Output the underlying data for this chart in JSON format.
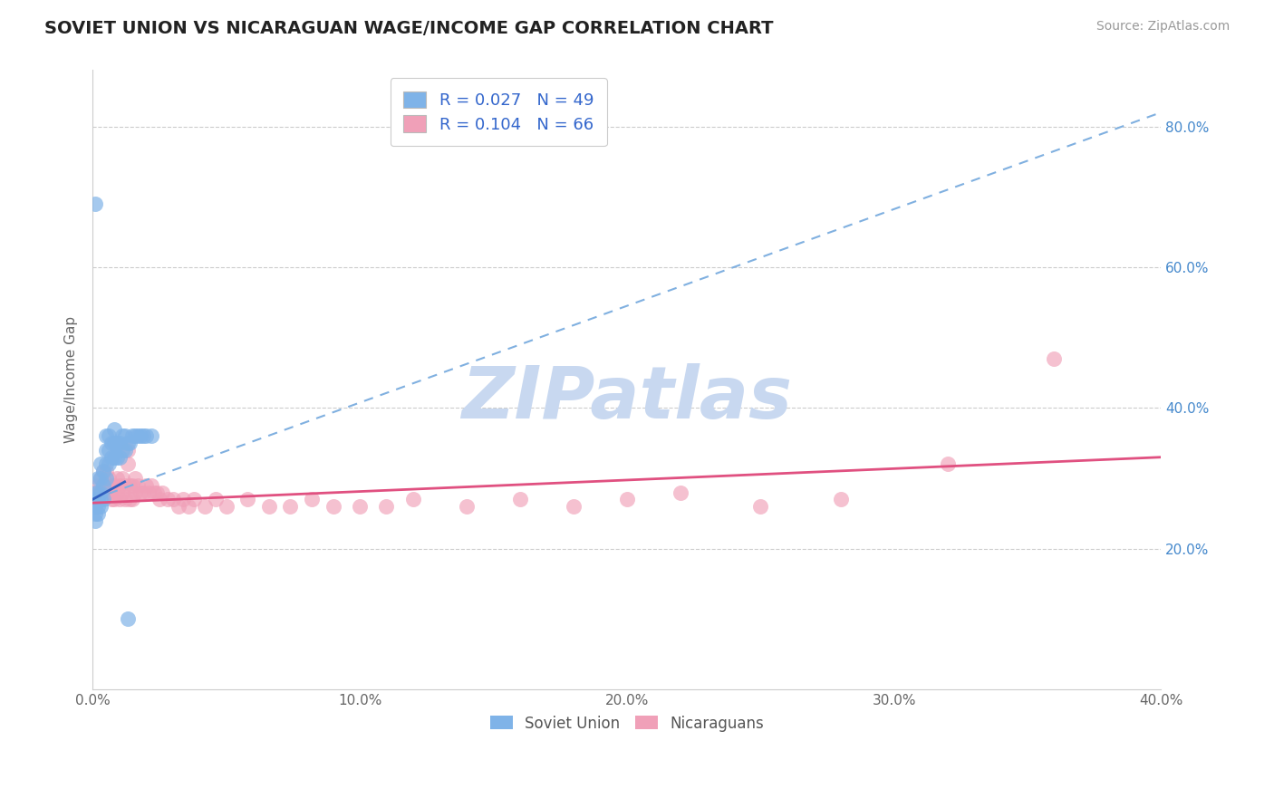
{
  "title": "SOVIET UNION VS NICARAGUAN WAGE/INCOME GAP CORRELATION CHART",
  "source": "Source: ZipAtlas.com",
  "ylabel": "Wage/Income Gap",
  "xlim": [
    0.0,
    0.4
  ],
  "ylim": [
    0.0,
    0.88
  ],
  "x_ticks": [
    0.0,
    0.1,
    0.2,
    0.3,
    0.4
  ],
  "x_tick_labels": [
    "0.0%",
    "10.0%",
    "20.0%",
    "30.0%",
    "40.0%"
  ],
  "y_ticks_right": [
    0.2,
    0.4,
    0.6,
    0.8
  ],
  "y_tick_labels_right": [
    "20.0%",
    "40.0%",
    "60.0%",
    "80.0%"
  ],
  "soviet_R": 0.027,
  "soviet_N": 49,
  "nicaraguan_R": 0.104,
  "nicaraguan_N": 66,
  "soviet_color": "#7fb3e8",
  "nicaraguan_color": "#f0a0b8",
  "soviet_line_color": "#3060c0",
  "soviet_line_dash_color": "#80b0e0",
  "nicaraguan_line_color": "#e05080",
  "background_color": "#ffffff",
  "grid_color": "#cccccc",
  "watermark": "ZIPatlas",
  "watermark_color": "#c8d8f0",
  "soviet_x": [
    0.001,
    0.001,
    0.001,
    0.001,
    0.001,
    0.002,
    0.002,
    0.002,
    0.002,
    0.002,
    0.003,
    0.003,
    0.003,
    0.003,
    0.003,
    0.004,
    0.004,
    0.004,
    0.005,
    0.005,
    0.005,
    0.005,
    0.006,
    0.006,
    0.006,
    0.007,
    0.007,
    0.008,
    0.008,
    0.008,
    0.009,
    0.009,
    0.01,
    0.01,
    0.011,
    0.011,
    0.012,
    0.012,
    0.013,
    0.014,
    0.015,
    0.016,
    0.017,
    0.018,
    0.019,
    0.02,
    0.022,
    0.001,
    0.013
  ],
  "soviet_y": [
    0.24,
    0.25,
    0.26,
    0.27,
    0.28,
    0.25,
    0.26,
    0.27,
    0.28,
    0.3,
    0.26,
    0.27,
    0.28,
    0.3,
    0.32,
    0.27,
    0.29,
    0.31,
    0.3,
    0.32,
    0.34,
    0.36,
    0.32,
    0.34,
    0.36,
    0.33,
    0.35,
    0.33,
    0.35,
    0.37,
    0.33,
    0.35,
    0.33,
    0.35,
    0.34,
    0.36,
    0.34,
    0.36,
    0.35,
    0.35,
    0.36,
    0.36,
    0.36,
    0.36,
    0.36,
    0.36,
    0.36,
    0.69,
    0.1
  ],
  "nicaraguan_x": [
    0.001,
    0.002,
    0.003,
    0.003,
    0.004,
    0.004,
    0.005,
    0.005,
    0.006,
    0.006,
    0.007,
    0.007,
    0.008,
    0.008,
    0.009,
    0.009,
    0.01,
    0.01,
    0.011,
    0.011,
    0.012,
    0.012,
    0.013,
    0.013,
    0.014,
    0.014,
    0.015,
    0.015,
    0.016,
    0.016,
    0.017,
    0.018,
    0.019,
    0.02,
    0.021,
    0.022,
    0.023,
    0.024,
    0.025,
    0.026,
    0.028,
    0.03,
    0.032,
    0.034,
    0.036,
    0.038,
    0.042,
    0.046,
    0.05,
    0.058,
    0.066,
    0.074,
    0.082,
    0.09,
    0.1,
    0.11,
    0.12,
    0.14,
    0.16,
    0.18,
    0.2,
    0.22,
    0.25,
    0.28,
    0.32,
    0.36
  ],
  "nicaraguan_y": [
    0.28,
    0.29,
    0.28,
    0.3,
    0.29,
    0.31,
    0.29,
    0.31,
    0.28,
    0.3,
    0.27,
    0.29,
    0.27,
    0.29,
    0.28,
    0.3,
    0.27,
    0.29,
    0.28,
    0.3,
    0.27,
    0.29,
    0.32,
    0.34,
    0.27,
    0.29,
    0.27,
    0.29,
    0.28,
    0.3,
    0.29,
    0.28,
    0.28,
    0.29,
    0.28,
    0.29,
    0.28,
    0.28,
    0.27,
    0.28,
    0.27,
    0.27,
    0.26,
    0.27,
    0.26,
    0.27,
    0.26,
    0.27,
    0.26,
    0.27,
    0.26,
    0.26,
    0.27,
    0.26,
    0.26,
    0.26,
    0.27,
    0.26,
    0.27,
    0.26,
    0.27,
    0.28,
    0.26,
    0.27,
    0.32,
    0.47
  ],
  "soviet_trend_x": [
    0.0,
    0.4
  ],
  "soviet_trend_y": [
    0.27,
    0.82
  ],
  "nicaraguan_trend_x": [
    0.0,
    0.4
  ],
  "nicaraguan_trend_y": [
    0.265,
    0.33
  ]
}
